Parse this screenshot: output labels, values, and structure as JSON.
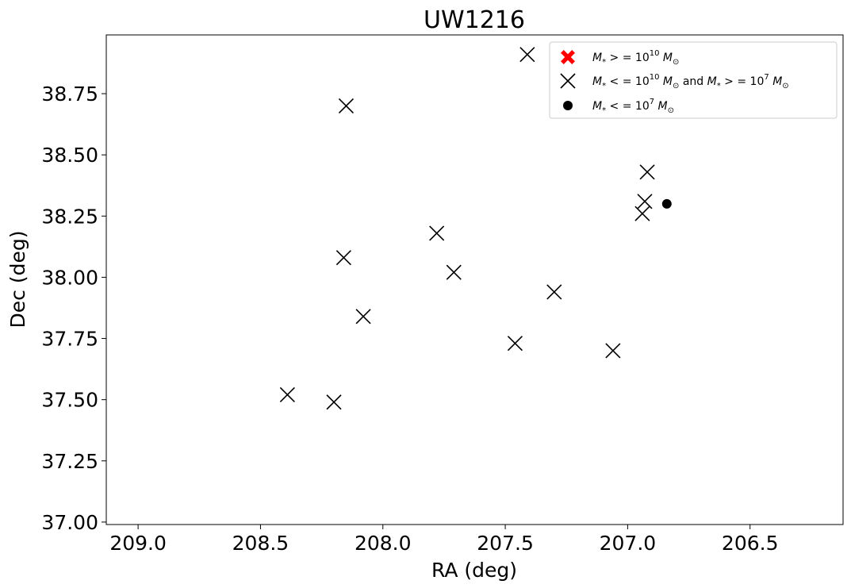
{
  "chart_data": {
    "type": "scatter",
    "title": "UW1216",
    "xlabel": "RA (deg)",
    "ylabel": "Dec (deg)",
    "xlim": [
      209.13,
      206.12
    ],
    "ylim": [
      36.99,
      38.99
    ],
    "x_inverted": true,
    "xticks": [
      209.0,
      208.5,
      208.0,
      207.5,
      207.0,
      206.5
    ],
    "xtick_labels": [
      "209.0",
      "208.5",
      "208.0",
      "207.5",
      "207.0",
      "206.5"
    ],
    "yticks": [
      37.0,
      37.25,
      37.5,
      37.75,
      38.0,
      38.25,
      38.5,
      38.75
    ],
    "ytick_labels": [
      "37.00",
      "37.25",
      "37.50",
      "37.75",
      "38.00",
      "38.25",
      "38.50",
      "38.75"
    ],
    "grid": false,
    "legend_position": "top-right",
    "series": [
      {
        "name": "M* >= 10^10 Msun",
        "marker": "filled-x",
        "color": "#ff0000",
        "points": []
      },
      {
        "name": "M* <= 10^10 Msun and M* >= 10^7 Msun",
        "marker": "x",
        "color": "#000000",
        "points": [
          {
            "x": 207.41,
            "y": 38.91
          },
          {
            "x": 208.15,
            "y": 38.7
          },
          {
            "x": 206.92,
            "y": 38.43
          },
          {
            "x": 206.93,
            "y": 38.31
          },
          {
            "x": 206.94,
            "y": 38.26
          },
          {
            "x": 207.78,
            "y": 38.18
          },
          {
            "x": 208.16,
            "y": 38.08
          },
          {
            "x": 207.71,
            "y": 38.02
          },
          {
            "x": 207.3,
            "y": 37.94
          },
          {
            "x": 208.08,
            "y": 37.84
          },
          {
            "x": 207.46,
            "y": 37.73
          },
          {
            "x": 207.06,
            "y": 37.7
          },
          {
            "x": 208.39,
            "y": 37.52
          },
          {
            "x": 208.2,
            "y": 37.49
          }
        ]
      },
      {
        "name": "M* <= 10^7 Msun",
        "marker": "circle",
        "color": "#000000",
        "points": [
          {
            "x": 206.84,
            "y": 38.3
          }
        ]
      }
    ]
  },
  "legend": {
    "entries": [
      {
        "pre": "M",
        "sub": "*",
        "mid": " > = 10",
        "sup": "10",
        "unit": " M",
        "unit_sub": "⊙",
        "tail": ""
      },
      {
        "pre": "M",
        "sub": "*",
        "mid": " < = 10",
        "sup": "10",
        "unit": " M",
        "unit_sub": "⊙",
        "tail": "  and  M* > = 10^7 M⊙"
      },
      {
        "pre": "M",
        "sub": "*",
        "mid": " < = 10",
        "sup": "7",
        "unit": " M",
        "unit_sub": "⊙",
        "tail": ""
      }
    ]
  }
}
